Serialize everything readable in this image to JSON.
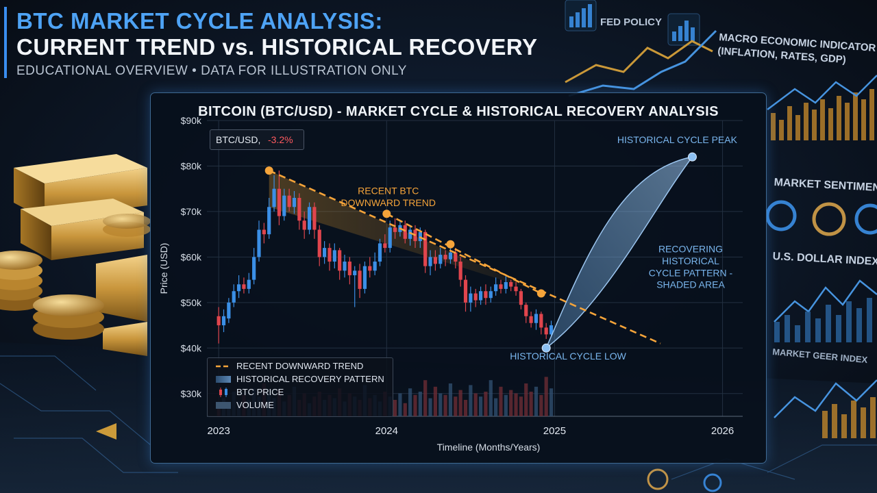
{
  "header": {
    "title_line1": "BTC MARKET CYCLE ANALYSIS:",
    "title_line2": "CURRENT TREND vs. HISTORICAL RECOVERY",
    "subtitle": "EDUCATIONAL OVERVIEW • DATA FOR ILLUSTRATION ONLY"
  },
  "background_labels": {
    "fed_policy": "FED POLICY",
    "macro_line1": "MACRO ECONOMIC INDICATOR",
    "macro_line2": "(INFLATION, RATES, GDP)",
    "market_sentiment": "MARKET SENTIMEN",
    "dollar_index": "U.S. DOLLAR INDEX",
    "market_greed": "MARKET GEER INDEX"
  },
  "colors": {
    "accent_blue": "#4ea3f5",
    "bull_candle": "#3b8fe6",
    "bear_candle": "#e0454d",
    "trend_orange": "#f5a43a",
    "recovery_fill": "#5b9bd8",
    "panel_border": "#3f6a93"
  },
  "chart_data": {
    "type": "candlestick",
    "title": "BITCOIN (BTC/USD) - MARKET CYCLE & HISTORICAL RECOVERY ANALYSIS",
    "ylabel": "Price (USD)",
    "xlabel": "Timeline (Months/Years)",
    "ylim": [
      25000,
      90000
    ],
    "yticks": [
      {
        "value": 90000,
        "label": "$90k"
      },
      {
        "value": 80000,
        "label": "$80k"
      },
      {
        "value": 70000,
        "label": "$70k"
      },
      {
        "value": 60000,
        "label": "$60k"
      },
      {
        "value": 50000,
        "label": "$50k"
      },
      {
        "value": 40000,
        "label": "$40k"
      },
      {
        "value": 30000,
        "label": "$30k"
      }
    ],
    "xlim": [
      2022.93,
      2026.12
    ],
    "xticks": [
      {
        "value": 2023,
        "label": "2023"
      },
      {
        "value": 2024,
        "label": "2024"
      },
      {
        "value": 2025,
        "label": "2025"
      },
      {
        "value": 2026,
        "label": "2026"
      }
    ],
    "grid": true,
    "ticker_label": "BTC/USD,",
    "change_label": "-3.2%",
    "candles": [
      {
        "x": 2023.0,
        "o": 47000,
        "c": 45000,
        "h": 49000,
        "l": 41000
      },
      {
        "x": 2023.03,
        "o": 45000,
        "c": 47000,
        "h": 48500,
        "l": 43500
      },
      {
        "x": 2023.06,
        "o": 46500,
        "c": 50000,
        "h": 51000,
        "l": 45500
      },
      {
        "x": 2023.09,
        "o": 50000,
        "c": 52500,
        "h": 54000,
        "l": 49000
      },
      {
        "x": 2023.12,
        "o": 52500,
        "c": 54000,
        "h": 56000,
        "l": 51000
      },
      {
        "x": 2023.15,
        "o": 54000,
        "c": 53000,
        "h": 55500,
        "l": 52000
      },
      {
        "x": 2023.18,
        "o": 53000,
        "c": 55000,
        "h": 56500,
        "l": 52000
      },
      {
        "x": 2023.21,
        "o": 55000,
        "c": 60000,
        "h": 62000,
        "l": 54000
      },
      {
        "x": 2023.24,
        "o": 60000,
        "c": 66000,
        "h": 68000,
        "l": 59000
      },
      {
        "x": 2023.27,
        "o": 66000,
        "c": 65000,
        "h": 67500,
        "l": 63000
      },
      {
        "x": 2023.3,
        "o": 65000,
        "c": 71000,
        "h": 73000,
        "l": 64000
      },
      {
        "x": 2023.33,
        "o": 71000,
        "c": 75000,
        "h": 78000,
        "l": 70000
      },
      {
        "x": 2023.36,
        "o": 75000,
        "c": 69000,
        "h": 79000,
        "l": 67000
      },
      {
        "x": 2023.39,
        "o": 69000,
        "c": 73500,
        "h": 75000,
        "l": 68000
      },
      {
        "x": 2023.42,
        "o": 73500,
        "c": 71000,
        "h": 75000,
        "l": 70000
      },
      {
        "x": 2023.45,
        "o": 71000,
        "c": 73000,
        "h": 74500,
        "l": 69500
      },
      {
        "x": 2023.48,
        "o": 73000,
        "c": 68000,
        "h": 74000,
        "l": 66000
      },
      {
        "x": 2023.51,
        "o": 68000,
        "c": 66000,
        "h": 70000,
        "l": 64000
      },
      {
        "x": 2023.54,
        "o": 66000,
        "c": 71000,
        "h": 72000,
        "l": 65000
      },
      {
        "x": 2023.57,
        "o": 71000,
        "c": 66000,
        "h": 72000,
        "l": 64000
      },
      {
        "x": 2023.6,
        "o": 66000,
        "c": 60000,
        "h": 67000,
        "l": 58000
      },
      {
        "x": 2023.63,
        "o": 60000,
        "c": 62000,
        "h": 63500,
        "l": 58500
      },
      {
        "x": 2023.66,
        "o": 62000,
        "c": 59000,
        "h": 63000,
        "l": 57000
      },
      {
        "x": 2023.69,
        "o": 59000,
        "c": 61500,
        "h": 63000,
        "l": 57500
      },
      {
        "x": 2023.72,
        "o": 61500,
        "c": 57000,
        "h": 62000,
        "l": 55000
      },
      {
        "x": 2023.75,
        "o": 57000,
        "c": 59000,
        "h": 60500,
        "l": 55500
      },
      {
        "x": 2023.78,
        "o": 59000,
        "c": 56000,
        "h": 60000,
        "l": 54000
      },
      {
        "x": 2023.81,
        "o": 56000,
        "c": 57000,
        "h": 58000,
        "l": 49000
      },
      {
        "x": 2023.84,
        "o": 57000,
        "c": 53000,
        "h": 58500,
        "l": 51000
      },
      {
        "x": 2023.87,
        "o": 53000,
        "c": 58000,
        "h": 59000,
        "l": 52000
      },
      {
        "x": 2023.9,
        "o": 58000,
        "c": 57000,
        "h": 60000,
        "l": 55500
      },
      {
        "x": 2023.93,
        "o": 57000,
        "c": 59000,
        "h": 61000,
        "l": 56000
      },
      {
        "x": 2023.96,
        "o": 59000,
        "c": 63000,
        "h": 64000,
        "l": 58000
      },
      {
        "x": 2023.99,
        "o": 63000,
        "c": 62000,
        "h": 65000,
        "l": 61000
      },
      {
        "x": 2024.02,
        "o": 62000,
        "c": 66500,
        "h": 68000,
        "l": 61000
      },
      {
        "x": 2024.05,
        "o": 66500,
        "c": 65500,
        "h": 68500,
        "l": 64000
      },
      {
        "x": 2024.08,
        "o": 65500,
        "c": 67000,
        "h": 68000,
        "l": 64500
      },
      {
        "x": 2024.11,
        "o": 67000,
        "c": 64000,
        "h": 68000,
        "l": 63000
      },
      {
        "x": 2024.14,
        "o": 64000,
        "c": 66000,
        "h": 67000,
        "l": 62500
      },
      {
        "x": 2024.17,
        "o": 66000,
        "c": 63500,
        "h": 67000,
        "l": 62000
      },
      {
        "x": 2024.2,
        "o": 63500,
        "c": 65500,
        "h": 66500,
        "l": 62000
      },
      {
        "x": 2024.23,
        "o": 65500,
        "c": 58000,
        "h": 66000,
        "l": 56500
      },
      {
        "x": 2024.26,
        "o": 58000,
        "c": 60000,
        "h": 61500,
        "l": 56000
      },
      {
        "x": 2024.29,
        "o": 60000,
        "c": 58500,
        "h": 61500,
        "l": 57000
      },
      {
        "x": 2024.32,
        "o": 58500,
        "c": 60500,
        "h": 62000,
        "l": 57500
      },
      {
        "x": 2024.35,
        "o": 60500,
        "c": 59500,
        "h": 61500,
        "l": 58000
      },
      {
        "x": 2024.38,
        "o": 59500,
        "c": 61000,
        "h": 62000,
        "l": 58500
      },
      {
        "x": 2024.41,
        "o": 61000,
        "c": 59000,
        "h": 62000,
        "l": 57500
      },
      {
        "x": 2024.44,
        "o": 59000,
        "c": 55000,
        "h": 60000,
        "l": 53500
      },
      {
        "x": 2024.47,
        "o": 55000,
        "c": 50000,
        "h": 56000,
        "l": 48000
      },
      {
        "x": 2024.5,
        "o": 50000,
        "c": 52000,
        "h": 53500,
        "l": 48000
      },
      {
        "x": 2024.53,
        "o": 52000,
        "c": 50500,
        "h": 53000,
        "l": 49000
      },
      {
        "x": 2024.56,
        "o": 50500,
        "c": 52500,
        "h": 53500,
        "l": 49500
      },
      {
        "x": 2024.59,
        "o": 52500,
        "c": 51000,
        "h": 54000,
        "l": 49500
      },
      {
        "x": 2024.62,
        "o": 51000,
        "c": 52500,
        "h": 53500,
        "l": 50000
      },
      {
        "x": 2024.65,
        "o": 52500,
        "c": 54000,
        "h": 55500,
        "l": 51500
      },
      {
        "x": 2024.68,
        "o": 54000,
        "c": 53000,
        "h": 55000,
        "l": 52000
      },
      {
        "x": 2024.71,
        "o": 53000,
        "c": 54500,
        "h": 56000,
        "l": 52000
      },
      {
        "x": 2024.74,
        "o": 54500,
        "c": 53500,
        "h": 55000,
        "l": 52500
      },
      {
        "x": 2024.77,
        "o": 53500,
        "c": 52500,
        "h": 54500,
        "l": 51500
      },
      {
        "x": 2024.8,
        "o": 52500,
        "c": 49500,
        "h": 53000,
        "l": 48500
      },
      {
        "x": 2024.83,
        "o": 49500,
        "c": 47000,
        "h": 50000,
        "l": 45500
      },
      {
        "x": 2024.86,
        "o": 47000,
        "c": 45500,
        "h": 48000,
        "l": 44500
      },
      {
        "x": 2024.89,
        "o": 45500,
        "c": 47500,
        "h": 48500,
        "l": 44000
      },
      {
        "x": 2024.92,
        "o": 47500,
        "c": 44500,
        "h": 48000,
        "l": 43000
      },
      {
        "x": 2024.95,
        "o": 44500,
        "c": 43000,
        "h": 45500,
        "l": 42000
      },
      {
        "x": 2024.98,
        "o": 43000,
        "c": 45000,
        "h": 46000,
        "l": 42500
      }
    ],
    "volume": [
      16,
      22,
      14,
      30,
      18,
      26,
      20,
      34,
      24,
      40,
      28,
      22,
      32,
      18,
      26,
      36,
      20,
      28,
      16,
      24,
      30,
      20,
      26,
      22,
      34,
      18,
      28,
      24,
      20,
      38,
      22,
      26,
      18,
      30,
      24,
      20,
      28,
      16,
      34,
      26,
      30,
      44,
      22,
      36,
      28,
      26,
      40,
      24,
      32,
      20,
      38,
      28,
      24,
      30,
      44,
      22,
      36,
      26,
      32,
      28,
      24,
      40,
      30,
      36,
      26,
      48,
      34
    ],
    "downtrend_lines": [
      {
        "name": "RECENT DOWNWARD TREND",
        "points": [
          [
            2023.3,
            79000
          ],
          [
            2025.63,
            41000
          ]
        ]
      },
      {
        "points": [
          [
            2024.0,
            69500
          ],
          [
            2024.92,
            52000
          ]
        ]
      }
    ],
    "trend_markers": [
      {
        "x": 2023.3,
        "y": 79000
      },
      {
        "x": 2024.0,
        "y": 69500
      },
      {
        "x": 2024.38,
        "y": 62800
      },
      {
        "x": 2024.92,
        "y": 52000
      }
    ],
    "historical_recovery": {
      "name": "HISTORICAL RECOVERY PATTERN",
      "low": {
        "x": 2024.95,
        "y": 40000
      },
      "peak": {
        "x": 2025.82,
        "y": 82000
      }
    },
    "annotations": {
      "downtrend_line1": "RECENT BTC",
      "downtrend_line2": "DOWNWARD TREND",
      "peak": "HISTORICAL CYCLE PEAK",
      "low": "HISTORICAL CYCLE LOW",
      "recover_line1": "RECOVERING",
      "recover_line2": "HISTORICAL",
      "recover_line3": "CYCLE PATTERN -",
      "recover_line4": "SHADED AREA"
    },
    "legend": {
      "position": "bottom-left",
      "items": [
        "RECENT DOWNWARD TREND",
        "HISTORICAL RECOVERY PATTERN",
        "BTC PRICE",
        "VOLUME"
      ]
    }
  }
}
